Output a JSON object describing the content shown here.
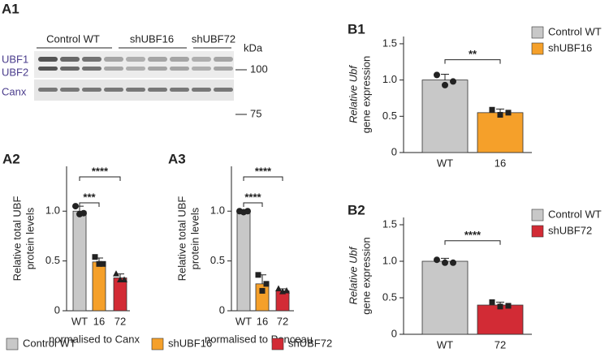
{
  "blot": {
    "title": "A1",
    "groups": [
      "Control WT",
      "shUBF16",
      "shUBF72"
    ],
    "unit": "kDa",
    "bands": [
      "UBF1",
      "UBF2",
      "Canx"
    ],
    "markers": [
      "100",
      "75"
    ]
  },
  "chart_data": [
    {
      "type": "bar",
      "title": "A2",
      "ylabel": [
        "Relative total UBF",
        "protein levels"
      ],
      "xlabel": "normalised to Canx",
      "categories": [
        "WT",
        "16",
        "72"
      ],
      "values": [
        1.0,
        0.49,
        0.33
      ],
      "errors": [
        0.05,
        0.04,
        0.04
      ],
      "points": [
        [
          1.05,
          0.97,
          0.98
        ],
        [
          0.54,
          0.47,
          0.47
        ],
        [
          0.37,
          0.31,
          0.31
        ]
      ],
      "colors": [
        "#c8c8c8",
        "#f5a02a",
        "#d22b35"
      ],
      "significance": [
        "***",
        "****"
      ],
      "ylim": [
        0,
        1.45
      ],
      "yticks": [
        0,
        0.5,
        {
          "value": 1,
          "label": "1.0"
        }
      ]
    },
    {
      "type": "bar",
      "title": "A3",
      "ylabel": [
        "Relative total UBF",
        "protein levels"
      ],
      "xlabel": "normalised to Ponceau",
      "categories": [
        "WT",
        "16",
        "72"
      ],
      "values": [
        1.0,
        0.27,
        0.2
      ],
      "errors": [
        0.01,
        0.09,
        0.02
      ],
      "points": [
        [
          1.0,
          0.99,
          1.0
        ],
        [
          0.36,
          0.2,
          0.27
        ],
        [
          0.22,
          0.19,
          0.2
        ]
      ],
      "colors": [
        "#c8c8c8",
        "#f5a02a",
        "#d22b35"
      ],
      "significance": [
        "****",
        "****"
      ],
      "ylim": [
        0,
        1.45
      ],
      "yticks": [
        0,
        0.5,
        {
          "value": 1,
          "label": "1.0"
        }
      ]
    },
    {
      "type": "bar",
      "title": "B1",
      "ylabel": [
        "Relative Ubf",
        "gene expression"
      ],
      "categories": [
        "WT",
        "16"
      ],
      "values": [
        1.0,
        0.55
      ],
      "errors": [
        0.08,
        0.05
      ],
      "points": [
        [
          1.07,
          0.93,
          0.98
        ],
        [
          0.59,
          0.52,
          0.55
        ]
      ],
      "colors": [
        "#c8c8c8",
        "#f5a02a"
      ],
      "significance": [
        "**"
      ],
      "legend": [
        "Control WT",
        "shUBF16"
      ],
      "ylim": [
        0,
        1.6
      ],
      "yticks": [
        0,
        0.5,
        {
          "value": 1,
          "label": "1.0"
        },
        1.5
      ]
    },
    {
      "type": "bar",
      "title": "B2",
      "ylabel": [
        "Relative Ubf",
        "gene expression"
      ],
      "categories": [
        "WT",
        "72"
      ],
      "values": [
        1.0,
        0.4
      ],
      "errors": [
        0.04,
        0.04
      ],
      "points": [
        [
          1.02,
          0.98,
          0.98
        ],
        [
          0.44,
          0.38,
          0.39
        ]
      ],
      "colors": [
        "#c8c8c8",
        "#d22b35"
      ],
      "significance": [
        "****"
      ],
      "legend": [
        "Control WT",
        "shUBF72"
      ],
      "ylim": [
        0,
        1.6
      ],
      "yticks": [
        0,
        0.5,
        {
          "value": 1,
          "label": "1.0"
        },
        1.5
      ]
    }
  ],
  "legend": {
    "items": [
      "Control WT",
      "shUBF16",
      "shUBF72"
    ],
    "colors": [
      "#c8c8c8",
      "#f5a02a",
      "#d22b35"
    ]
  }
}
